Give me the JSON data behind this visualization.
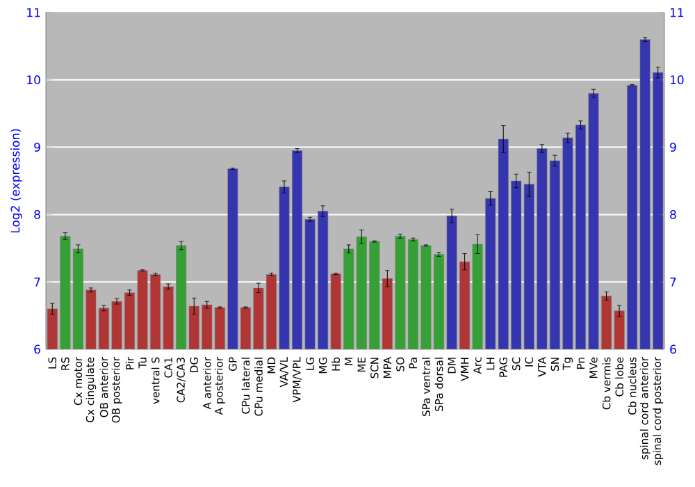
{
  "chart_data": {
    "type": "bar",
    "ylabel": "Log2 (expression)",
    "categories": [
      "LS",
      "RS",
      "Cx motor",
      "Cx cingulate",
      "OB anterior",
      "OB posterior",
      "Pir",
      "Tu",
      "ventral S",
      "CA1",
      "CA2/CA3",
      "DG",
      "A anterior",
      "A posterior",
      "GP",
      "CPu lateral",
      "CPu medial",
      "MD",
      "VA/VL",
      "VPM/VPL",
      "LG",
      "MG",
      "Hb",
      "M",
      "ME",
      "SCN",
      "MPA",
      "SO",
      "Pa",
      "SPa ventral",
      "SPa dorsal",
      "DM",
      "VMH",
      "Arc",
      "LH",
      "PAG",
      "SC",
      "IC",
      "VTA",
      "SN",
      "Tg",
      "Pn",
      "MVe",
      "Cb vermis",
      "Cb lobe",
      "Cb nucleus",
      "spinal cord anterior",
      "spinal cord posterior"
    ],
    "values": [
      6.6,
      7.68,
      7.49,
      6.88,
      6.61,
      6.71,
      6.84,
      7.17,
      7.11,
      6.93,
      7.54,
      6.64,
      6.66,
      6.62,
      8.68,
      6.62,
      6.91,
      7.11,
      8.41,
      8.95,
      7.93,
      8.05,
      7.12,
      7.49,
      7.67,
      7.6,
      7.05,
      7.68,
      7.63,
      7.54,
      7.41,
      7.98,
      7.3,
      7.56,
      8.24,
      9.12,
      8.5,
      8.45,
      8.98,
      8.8,
      9.14,
      9.33,
      9.8,
      6.79,
      6.57,
      9.92,
      10.6,
      10.11
    ],
    "errors": [
      0.08,
      0.05,
      0.06,
      0.03,
      0.04,
      0.04,
      0.04,
      0.01,
      0.02,
      0.04,
      0.06,
      0.12,
      0.05,
      0.01,
      0.01,
      0.01,
      0.07,
      0.02,
      0.09,
      0.03,
      0.03,
      0.08,
      0.01,
      0.06,
      0.1,
      0.01,
      0.12,
      0.03,
      0.02,
      0.01,
      0.03,
      0.1,
      0.12,
      0.14,
      0.1,
      0.2,
      0.1,
      0.18,
      0.06,
      0.08,
      0.07,
      0.06,
      0.06,
      0.06,
      0.08,
      0.01,
      0.03,
      0.08
    ],
    "colors": [
      "#b03535",
      "#35a035",
      "#35a035",
      "#b03535",
      "#b03535",
      "#b03535",
      "#b03535",
      "#b03535",
      "#b03535",
      "#b03535",
      "#35a035",
      "#b03535",
      "#b03535",
      "#b03535",
      "#3535b0",
      "#b03535",
      "#b03535",
      "#b03535",
      "#3535b0",
      "#3535b0",
      "#3535b0",
      "#3535b0",
      "#b03535",
      "#35a035",
      "#35a035",
      "#35a035",
      "#b03535",
      "#35a035",
      "#35a035",
      "#35a035",
      "#35a035",
      "#3535b0",
      "#b03535",
      "#35a035",
      "#3535b0",
      "#3535b0",
      "#3535b0",
      "#3535b0",
      "#3535b0",
      "#3535b0",
      "#3535b0",
      "#3535b0",
      "#3535b0",
      "#b03535",
      "#b03535",
      "#3535b0",
      "#3535b0",
      "#3535b0"
    ],
    "ylim": [
      6,
      11
    ],
    "yticks": [
      6,
      7,
      8,
      9,
      10,
      11
    ],
    "y2lim": [
      6,
      11
    ],
    "y2ticks": [
      6,
      7,
      8,
      9,
      10,
      11
    ],
    "grid": "y"
  }
}
